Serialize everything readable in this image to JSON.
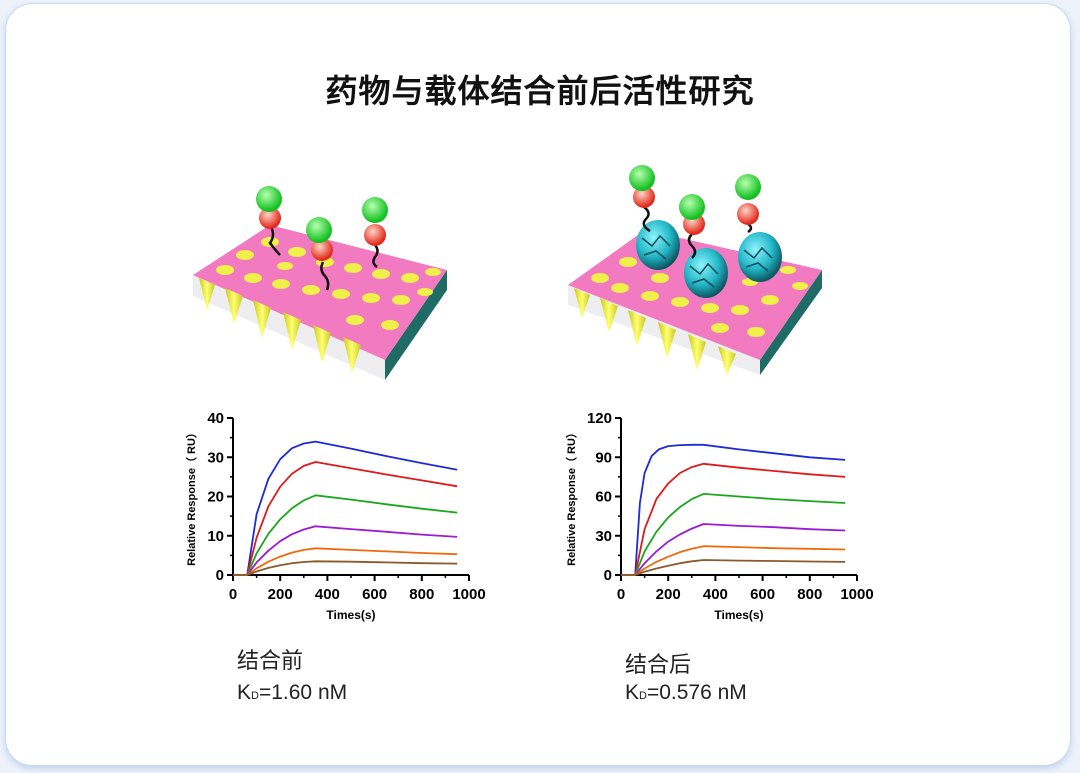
{
  "title": "药物与载体结合前后活性研究",
  "panels": [
    {
      "caption": "结合前",
      "kd_prefix": "K",
      "kd_sub": "D",
      "kd_value": "=1.60 nM"
    },
    {
      "caption": "结合后",
      "kd_prefix": "K",
      "kd_sub": "D",
      "kd_value": "=0.576 nM"
    }
  ],
  "colors": {
    "series": [
      "#1e2ad6",
      "#e01a1a",
      "#1aa81a",
      "#9b1ad6",
      "#ef6a0c",
      "#8a5a2a"
    ],
    "surface_pink": "#f27ac0",
    "pore_yellow": "#f0f04a",
    "side_teal": "#1f6b66",
    "ligand_green": "#1ccf2a",
    "receptor_red": "#e83a2a",
    "carrier_cyan": "#2ac8d8"
  },
  "chart_data": [
    {
      "type": "line",
      "title": "",
      "xlabel": "Times(s)",
      "ylabel": "Relative Response（ RU）",
      "xlim": [
        0,
        1000
      ],
      "ylim": [
        0,
        40
      ],
      "xticks": [
        "0",
        "200",
        "400",
        "600",
        "800",
        "1000"
      ],
      "yticks": [
        "0",
        "10",
        "20",
        "30",
        "40"
      ],
      "series": [
        {
          "x": [
            60,
            100,
            150,
            200,
            250,
            300,
            350,
            500,
            650,
            800,
            950
          ],
          "values": [
            0,
            15.5,
            24.5,
            29.5,
            32.3,
            33.5,
            34,
            32.2,
            30.3,
            28.5,
            26.8
          ]
        },
        {
          "x": [
            60,
            100,
            150,
            200,
            250,
            300,
            350,
            500,
            650,
            800,
            950
          ],
          "values": [
            0,
            9.5,
            17.5,
            22.5,
            25.8,
            27.8,
            28.8,
            27.2,
            25.6,
            24.1,
            22.6
          ]
        },
        {
          "x": [
            60,
            100,
            150,
            200,
            250,
            300,
            350,
            500,
            650,
            800,
            950
          ],
          "values": [
            0,
            5.5,
            10.5,
            14.2,
            17,
            19,
            20.3,
            19.2,
            18,
            16.9,
            15.9
          ]
        },
        {
          "x": [
            60,
            100,
            150,
            200,
            250,
            300,
            350,
            500,
            650,
            800,
            950
          ],
          "values": [
            0,
            3.2,
            6.2,
            8.6,
            10.4,
            11.6,
            12.4,
            11.7,
            11,
            10.3,
            9.7
          ]
        },
        {
          "x": [
            60,
            100,
            150,
            200,
            250,
            300,
            350,
            500,
            650,
            800,
            950
          ],
          "values": [
            0,
            1.7,
            3.4,
            4.7,
            5.7,
            6.4,
            6.8,
            6.4,
            6,
            5.6,
            5.3
          ]
        },
        {
          "x": [
            60,
            100,
            150,
            200,
            250,
            300,
            350,
            500,
            650,
            800,
            950
          ],
          "values": [
            0,
            0.9,
            1.8,
            2.5,
            3,
            3.3,
            3.5,
            3.4,
            3.2,
            3,
            2.9
          ]
        }
      ]
    },
    {
      "type": "line",
      "title": "",
      "xlabel": "Times(s)",
      "ylabel": "Relative Response（ RU）",
      "xlim": [
        0,
        1000
      ],
      "ylim": [
        0,
        120
      ],
      "xticks": [
        "0",
        "200",
        "400",
        "600",
        "800",
        "1000"
      ],
      "yticks": [
        "0",
        "30",
        "60",
        "90",
        "120"
      ],
      "series": [
        {
          "x": [
            60,
            80,
            100,
            130,
            160,
            200,
            250,
            300,
            350,
            500,
            650,
            800,
            950
          ],
          "values": [
            0,
            55,
            78,
            91,
            96,
            98.5,
            99.3,
            99.5,
            99.5,
            96,
            93,
            90,
            88
          ]
        },
        {
          "x": [
            60,
            100,
            150,
            200,
            250,
            300,
            350,
            500,
            650,
            800,
            950
          ],
          "values": [
            0,
            35,
            58,
            70,
            78,
            82.5,
            85,
            82,
            79.5,
            77,
            75
          ]
        },
        {
          "x": [
            60,
            100,
            150,
            200,
            250,
            300,
            350,
            500,
            650,
            800,
            950
          ],
          "values": [
            0,
            18,
            33,
            44,
            52,
            58,
            62,
            60,
            58,
            56.5,
            55
          ]
        },
        {
          "x": [
            60,
            100,
            150,
            200,
            250,
            300,
            350,
            500,
            650,
            800,
            950
          ],
          "values": [
            0,
            9,
            18,
            25.5,
            31,
            35.5,
            39,
            37.5,
            36.5,
            35,
            34
          ]
        },
        {
          "x": [
            60,
            100,
            150,
            200,
            250,
            300,
            350,
            500,
            650,
            800,
            950
          ],
          "values": [
            0,
            5,
            10,
            14,
            17.5,
            20,
            22,
            21.3,
            20.5,
            20,
            19.5
          ]
        },
        {
          "x": [
            60,
            100,
            150,
            200,
            250,
            300,
            350,
            500,
            650,
            800,
            950
          ],
          "values": [
            0,
            2.5,
            5,
            7,
            9,
            10.5,
            11.5,
            11,
            10.7,
            10.3,
            10
          ]
        }
      ]
    }
  ]
}
